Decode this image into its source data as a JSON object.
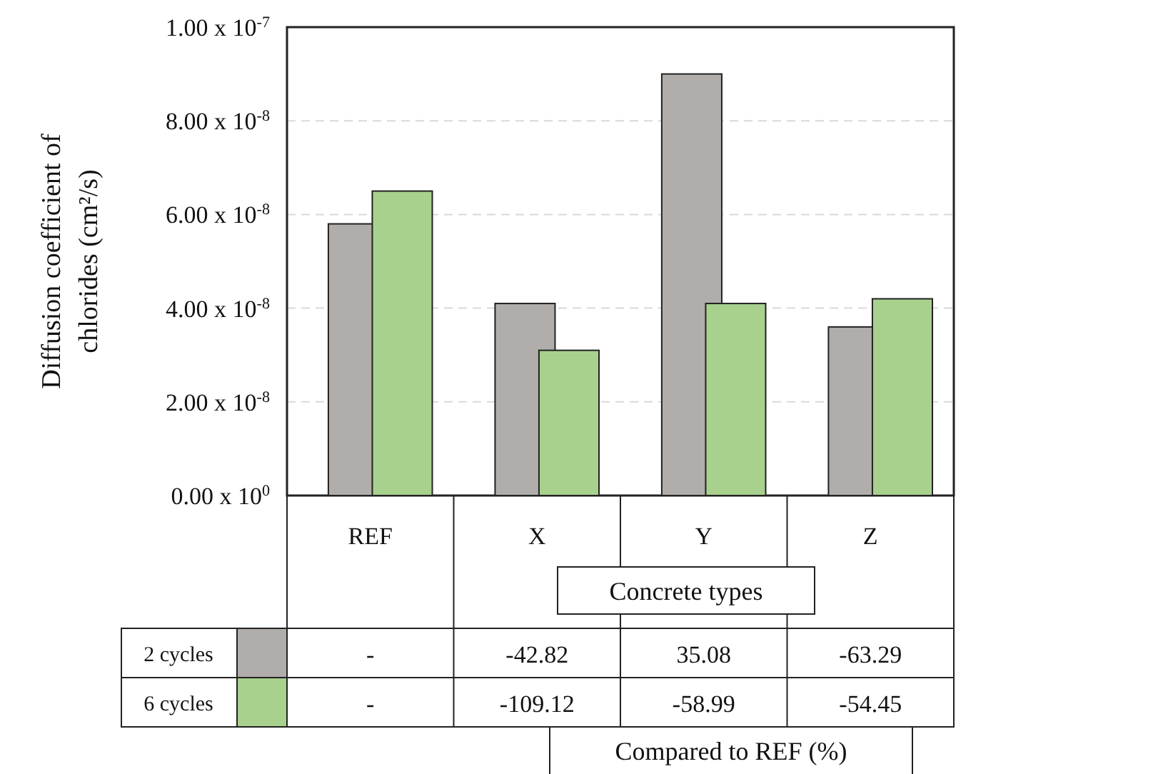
{
  "chart_data": {
    "type": "bar",
    "xlabel": "Concrete types",
    "ylabel": "Diffusion coefficient of chlorides (cm²/s)",
    "categories": [
      "REF",
      "X",
      "Y",
      "Z"
    ],
    "series": [
      {
        "name": "2 cycles",
        "color": "#b0adab",
        "values": [
          5.8e-08,
          4.1e-08,
          9e-08,
          3.6e-08
        ]
      },
      {
        "name": "6 cycles",
        "color": "#a9d18e",
        "values": [
          6.5e-08,
          3.1e-08,
          4.1e-08,
          4.2e-08
        ]
      }
    ],
    "ylim": [
      0,
      1e-07
    ],
    "yticks": [
      {
        "value": 0,
        "label": "0.00 x 10$^{0}$"
      },
      {
        "value": 2e-08,
        "label": "2.00 x 10$^{-8}$"
      },
      {
        "value": 4e-08,
        "label": "4.00 x 10$^{-8}$"
      },
      {
        "value": 6e-08,
        "label": "6.00 x 10$^{-8}$"
      },
      {
        "value": 8e-08,
        "label": "8.00 x 10$^{-8}$"
      },
      {
        "value": 1e-07,
        "label": "1.00 x 10$^{-7}$"
      }
    ],
    "grid": "y",
    "legend": "bottom",
    "annotations": [
      "-",
      "-42.82",
      "35.08",
      "-63.29",
      "-",
      "-109.12",
      "-58.99",
      "-54.45",
      "Compared to REF (%)"
    ]
  }
}
